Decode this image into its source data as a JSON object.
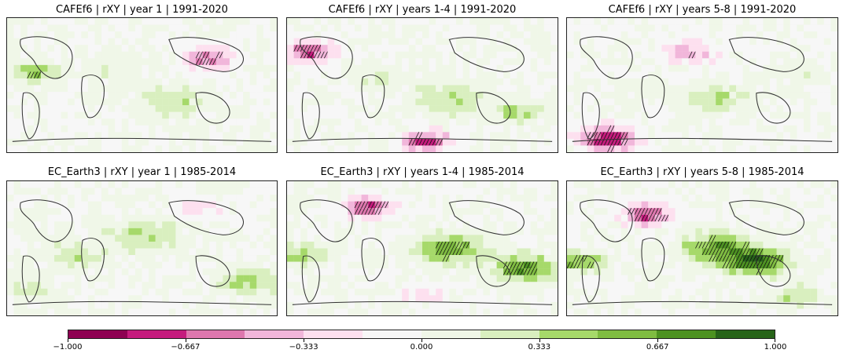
{
  "chart_data": {
    "type": "heatmap",
    "panels": [
      {
        "title": "CAFEf6 | rXY | year 1 | 1991-2020",
        "model": "CAFEf6",
        "metric": "rXY",
        "lead": "year 1",
        "period": "1991-2020"
      },
      {
        "title": "CAFEf6 | rXY | years 1-4 | 1991-2020",
        "model": "CAFEf6",
        "metric": "rXY",
        "lead": "years 1-4",
        "period": "1991-2020"
      },
      {
        "title": "CAFEf6 | rXY | years 5-8 | 1991-2020",
        "model": "CAFEf6",
        "metric": "rXY",
        "lead": "years 5-8",
        "period": "1991-2020"
      },
      {
        "title": "EC_Earth3 | rXY | year 1 | 1985-2014",
        "model": "EC_Earth3",
        "metric": "rXY",
        "lead": "year 1",
        "period": "1985-2014"
      },
      {
        "title": "EC_Earth3 | rXY | years 1-4 | 1985-2014",
        "model": "EC_Earth3",
        "metric": "rXY",
        "lead": "years 1-4",
        "period": "1985-2014"
      },
      {
        "title": "EC_Earth3 | rXY | years 5-8 | 1985-2014",
        "model": "EC_Earth3",
        "metric": "rXY",
        "lead": "years 5-8",
        "period": "1985-2014"
      }
    ],
    "colorbar": {
      "vmin": -1.0,
      "vmax": 1.0,
      "ticks": [
        -1.0,
        -0.667,
        -0.333,
        0.0,
        0.333,
        0.667,
        1.0
      ],
      "tick_labels": [
        "−1.000",
        "−0.667",
        "−0.333",
        "0.000",
        "0.333",
        "0.667",
        "1.000"
      ],
      "colors": [
        "#8e0152",
        "#c51b7d",
        "#de77ae",
        "#f1b6da",
        "#fde0ef",
        "#f7f7f7",
        "#f0f7e8",
        "#d9efbf",
        "#a6d96a",
        "#7fbc41",
        "#4d9221",
        "#276419"
      ],
      "cmap": "PiYG"
    },
    "hatching": "significant correlations"
  }
}
